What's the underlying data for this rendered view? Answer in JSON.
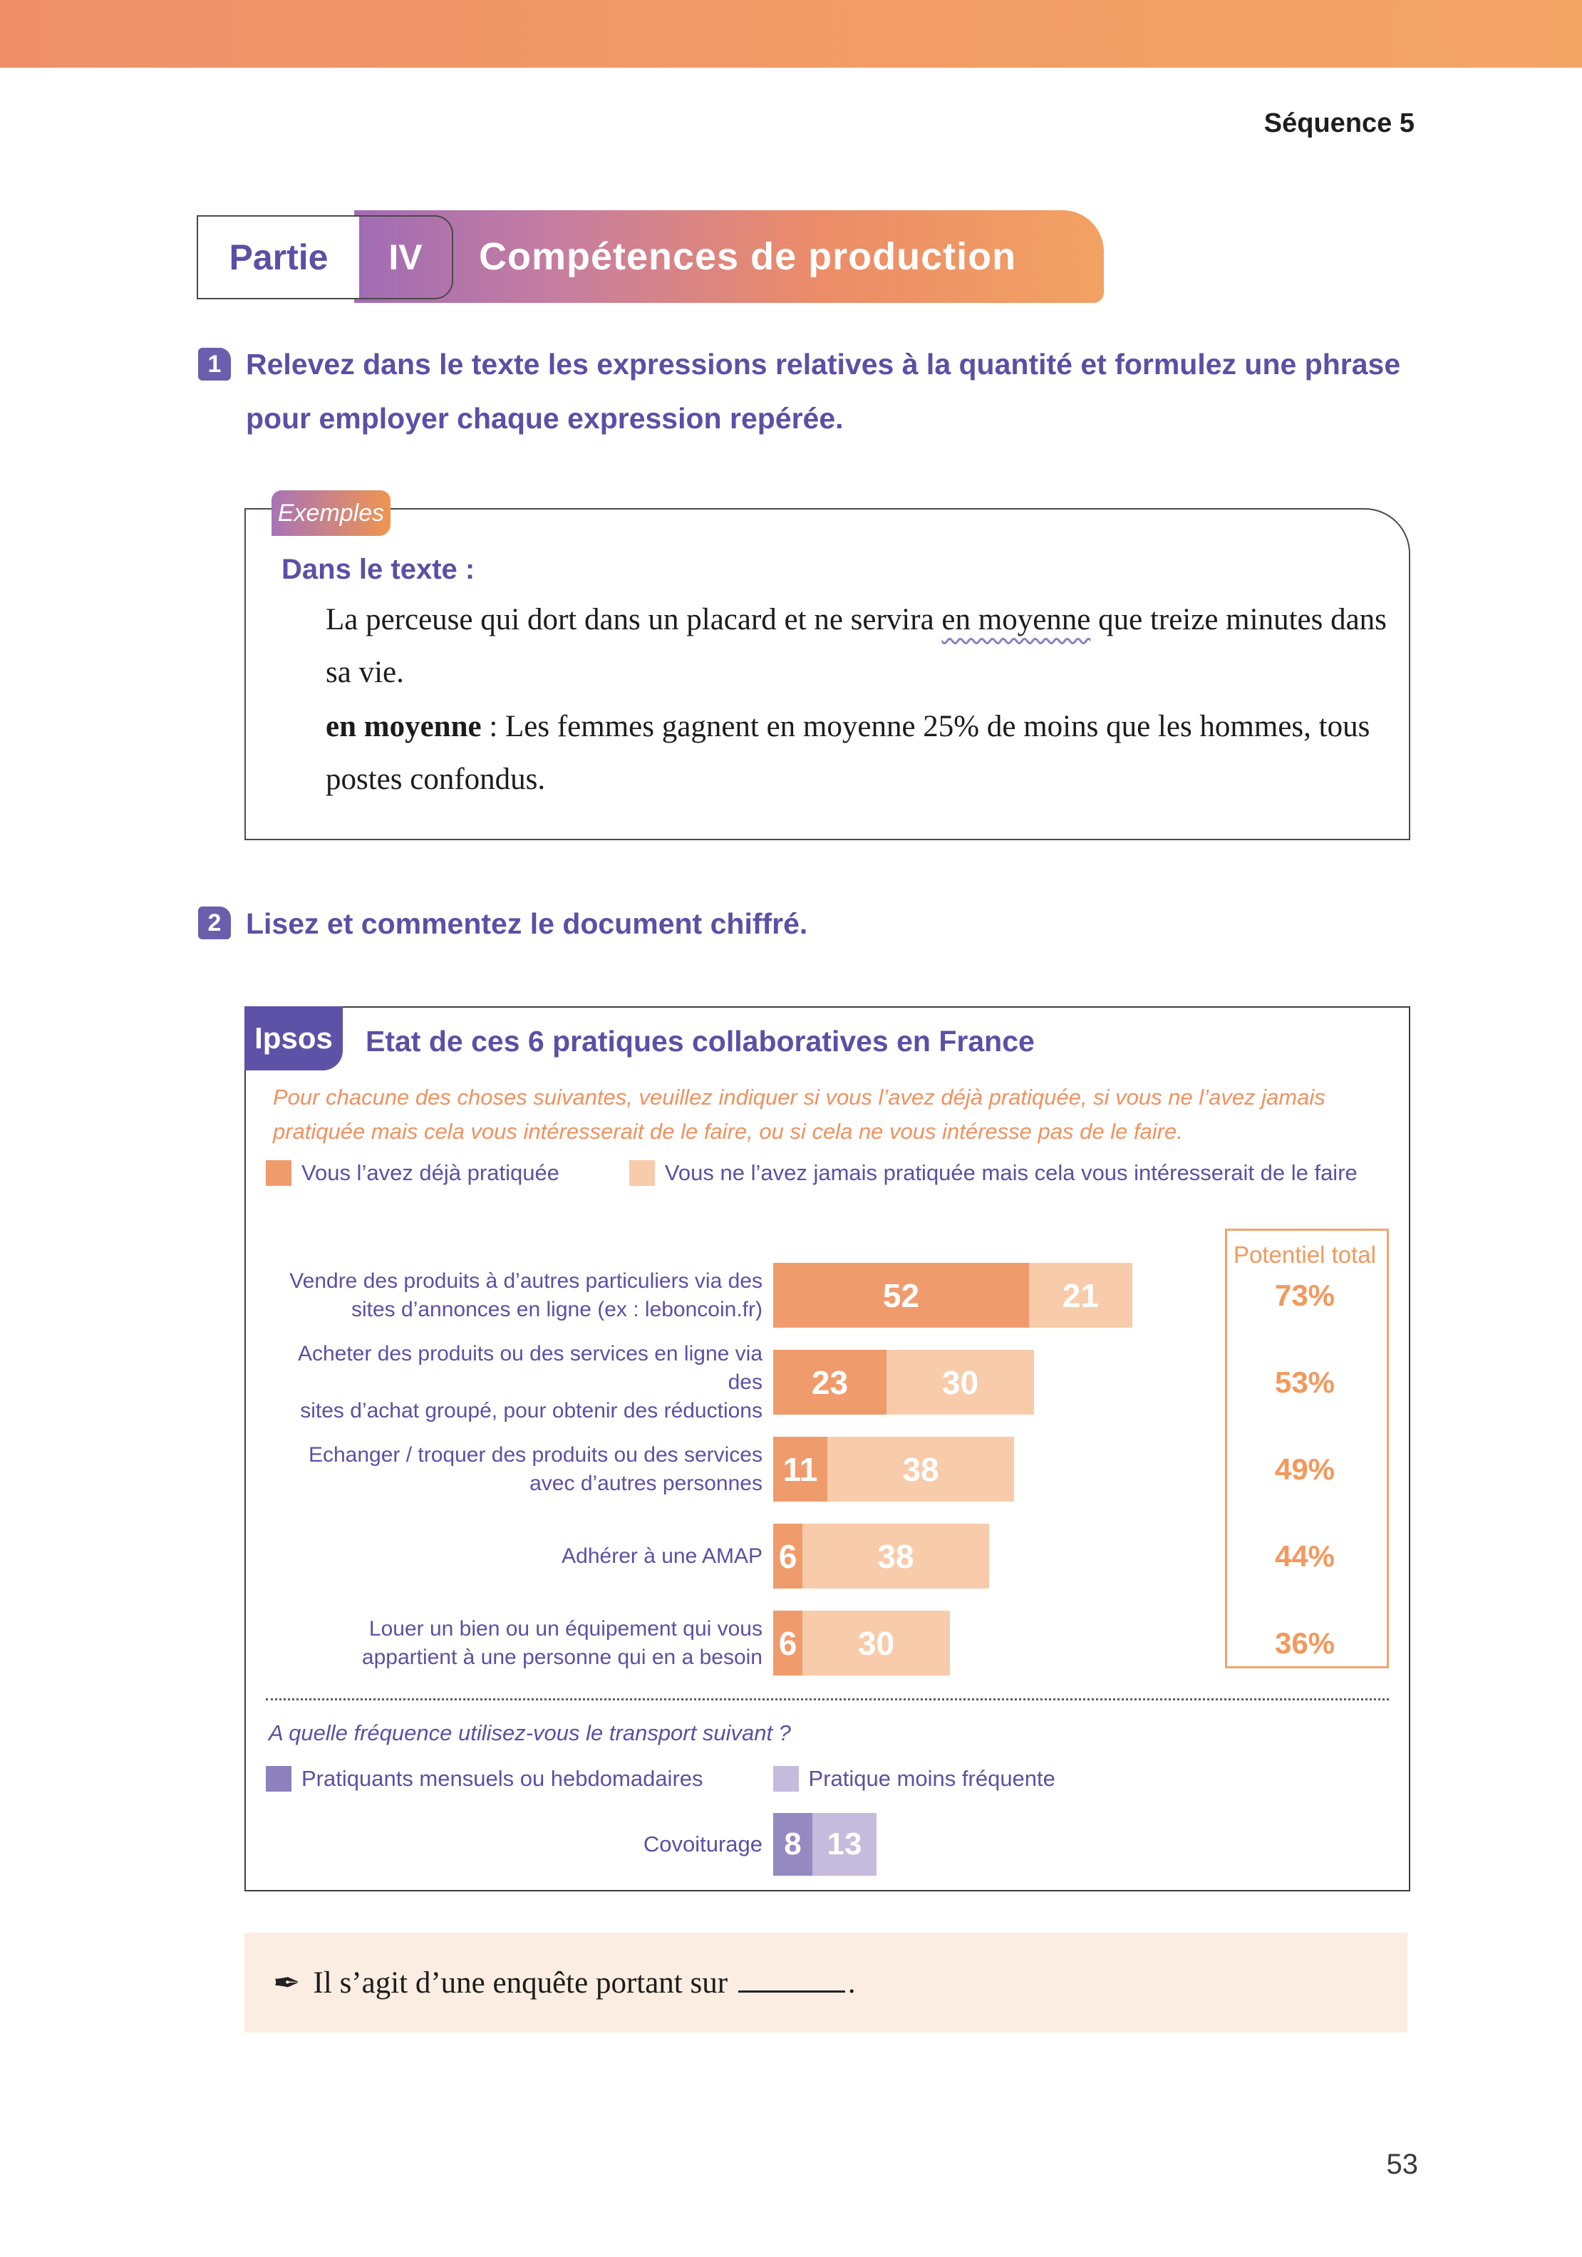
{
  "page": {
    "sequence": "Séquence 5",
    "number": "53"
  },
  "banner": {
    "partie": "Partie",
    "numeral": "IV",
    "title": "Compétences de production"
  },
  "exercise1": {
    "number": "1",
    "text": "Relevez dans le texte les expressions relatives à la quantité et formulez une phrase pour employer chaque expression repérée."
  },
  "examples": {
    "tab": "Exemples",
    "heading": "Dans le texte :",
    "p1_before": "La perceuse qui dort dans un placard et ne servira ",
    "p1_underlined": "en moyenne",
    "p1_after": " que treize minutes dans sa vie.",
    "p2_bold": "en moyenne",
    "p2_rest": " : Les femmes gagnent en moyenne 25% de moins que les hommes, tous postes confondus."
  },
  "exercise2": {
    "number": "2",
    "text": "Lisez et commentez le document chiffré."
  },
  "chart": {
    "source": "Ipsos",
    "title": "Etat de ces 6 pratiques collaboratives en France",
    "intro": "Pour chacune des choses suivantes, veuillez indiquer si vous l’avez déjà pratiquée, si vous ne l’avez jamais pratiquée mais cela vous intéresserait de le faire, ou si cela ne vous intéresse pas de le faire.",
    "legend1": [
      {
        "label": "Vous l’avez déjà pratiquée",
        "color": "#f09b6c"
      },
      {
        "label": "Vous ne l’avez jamais pratiquée mais cela vous intéresserait de le faire",
        "color": "#f8cbab"
      }
    ],
    "potential_header": "Potentiel total",
    "rows": [
      {
        "label_l1": "Vendre des produits à d’autres particuliers via des",
        "label_l2": "sites d’annonces en ligne (ex : leboncoin.fr)",
        "v1": 52,
        "v2": 21,
        "total": "73%"
      },
      {
        "label_l1": "Acheter des produits ou des services en ligne via des",
        "label_l2": "sites d’achat groupé, pour obtenir des réductions",
        "v1": 23,
        "v2": 30,
        "total": "53%"
      },
      {
        "label_l1": "Echanger / troquer des produits ou des services",
        "label_l2": "avec d’autres personnes",
        "v1": 11,
        "v2": 38,
        "total": "49%"
      },
      {
        "label_l1": "Adhérer à une AMAP",
        "label_l2": "",
        "v1": 6,
        "v2": 38,
        "total": "44%"
      },
      {
        "label_l1": "Louer un bien ou un équipement qui vous",
        "label_l2": "appartient à une personne qui en a besoin",
        "v1": 6,
        "v2": 30,
        "total": "36%"
      }
    ],
    "divider_question": "A quelle fréquence utilisez-vous le transport suivant ?",
    "legend2": [
      {
        "label": "Pratiquants mensuels ou hebdomadaires",
        "color": "#8d81be"
      },
      {
        "label": "Pratique moins fréquente",
        "color": "#c4bbdd"
      }
    ],
    "transport_row": {
      "label": "Covoiturage",
      "v1": 8,
      "v2": 13
    }
  },
  "answer": {
    "text_before": "Il s’agit d’une enquête portant sur",
    "text_after": "."
  },
  "chart_data": {
    "type": "bar",
    "orientation": "horizontal",
    "title": "Etat de ces 6 pratiques collaboratives en France",
    "source": "Ipsos",
    "categories": [
      "Vendre des produits à d’autres particuliers via des sites d’annonces en ligne (ex : leboncoin.fr)",
      "Acheter des produits ou des services en ligne via des sites d’achat groupé, pour obtenir des réductions",
      "Echanger / troquer des produits ou des services avec d’autres personnes",
      "Adhérer à une AMAP",
      "Louer un bien ou un équipement qui vous appartient à une personne qui en a besoin"
    ],
    "series": [
      {
        "name": "Vous l’avez déjà pratiquée",
        "values": [
          52,
          23,
          11,
          6,
          6
        ],
        "color": "#f09b6c"
      },
      {
        "name": "Vous ne l’avez jamais pratiquée mais cela vous intéresserait de le faire",
        "values": [
          21,
          30,
          38,
          38,
          30
        ],
        "color": "#f8cbab"
      }
    ],
    "potential_total": [
      "73%",
      "53%",
      "49%",
      "44%",
      "36%"
    ],
    "secondary_question": "A quelle fréquence utilisez-vous le transport suivant ?",
    "secondary": {
      "category": "Covoiturage",
      "series": [
        {
          "name": "Pratiquants mensuels ou hebdomadaires",
          "value": 8,
          "color": "#9489c1"
        },
        {
          "name": "Pratique moins fréquente",
          "value": 13,
          "color": "#c4bbdd"
        }
      ]
    },
    "legend_position": "top",
    "grid": false
  }
}
